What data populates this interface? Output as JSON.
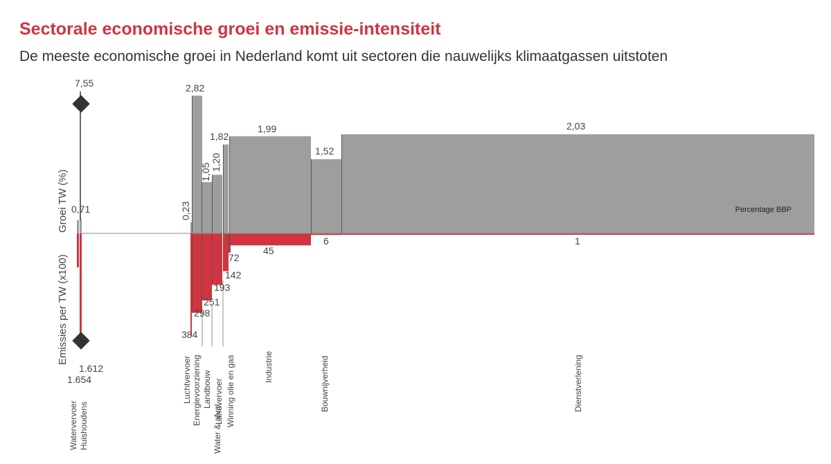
{
  "title": "Sectorale economische groei en emissie-intensiteit",
  "subtitle": "De meeste economische groei in Nederland komt uit sectoren die nauwelijks klimaatgassen uitstoten",
  "chart_data": {
    "type": "bar",
    "variable_width": true,
    "y_label_top": "Groei TW (%)",
    "y_label_bottom": "Emissies per TW (x100)",
    "width_label": "Percentage BBP",
    "colors": {
      "growth": "#9e9e9e",
      "emissions": "#d0343f",
      "axis": "#888888",
      "marker": "#333333"
    },
    "broken_axis_sectors": [
      "Watervervoer",
      "Huishoudens"
    ],
    "sectors": [
      {
        "name": "Watervervoer",
        "growth": 7.55,
        "growth_label": "7,55",
        "emissions": 16.54,
        "emissions_label": "1.654"
      },
      {
        "name": "Huishoudens",
        "growth": 0.71,
        "growth_label": "0,71",
        "emissions": 16.12,
        "emissions_label": "1.612"
      },
      {
        "name": "Luchtvervoer",
        "growth": 0.23,
        "growth_label": "0,23",
        "emissions": 3.84,
        "emissions_label": "384"
      },
      {
        "name": "Energievoorziening",
        "growth": 2.82,
        "growth_label": "2,82",
        "emissions": 2.98,
        "emissions_label": "298"
      },
      {
        "name": "Landbouw",
        "growth": 1.05,
        "growth_label": "1,05",
        "emissions": 2.51,
        "emissions_label": "251"
      },
      {
        "name": "Water & afval",
        "growth": 1.2,
        "growth_label": "1,20",
        "emissions": 1.93,
        "emissions_label": "193"
      },
      {
        "name": "Landvervoer",
        "growth": 1.82,
        "growth_label": "1,82",
        "emissions": 1.42,
        "emissions_label": "142"
      },
      {
        "name": "Winning olie en gas",
        "growth": 0,
        "growth_label": "",
        "emissions": 0.72,
        "emissions_label": "72"
      },
      {
        "name": "Industrie",
        "growth": 1.99,
        "growth_label": "1,99",
        "emissions": 0.45,
        "emissions_label": "45"
      },
      {
        "name": "Bouwnijverheid",
        "growth": 1.52,
        "growth_label": "1,52",
        "emissions": 0.06,
        "emissions_label": "6"
      },
      {
        "name": "Dienstverlening",
        "growth": 2.03,
        "growth_label": "2,03",
        "emissions": 0.01,
        "emissions_label": "1"
      }
    ]
  }
}
